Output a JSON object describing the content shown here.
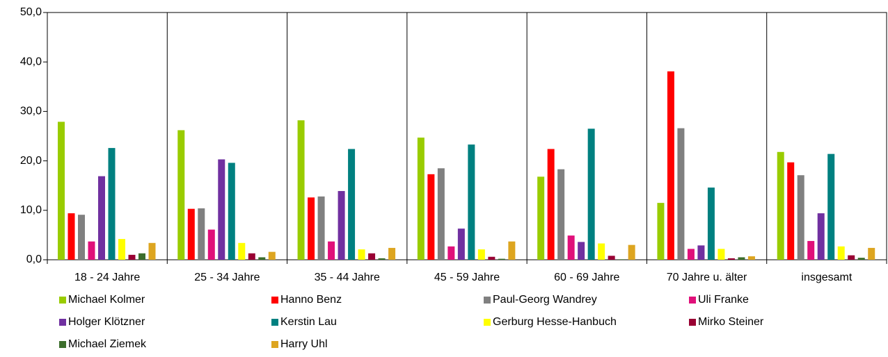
{
  "chart_data": {
    "type": "bar",
    "categories": [
      "18 - 24 Jahre",
      "25 - 34 Jahre",
      "35 - 44 Jahre",
      "45 - 59 Jahre",
      "60 - 69 Jahre",
      "70 Jahre u. älter",
      "insgesamt"
    ],
    "series": [
      {
        "name": "Michael Kolmer",
        "color": "#99cc00",
        "values": [
          27.9,
          26.2,
          28.2,
          24.7,
          16.8,
          11.5,
          21.8
        ]
      },
      {
        "name": "Hanno Benz",
        "color": "#ff0000",
        "values": [
          9.4,
          10.3,
          12.6,
          17.3,
          22.4,
          38.1,
          19.7
        ]
      },
      {
        "name": "Paul-Georg Wandrey",
        "color": "#808080",
        "values": [
          9.1,
          10.4,
          12.8,
          18.5,
          18.3,
          26.6,
          17.1
        ]
      },
      {
        "name": "Uli Franke",
        "color": "#e0107a",
        "values": [
          3.7,
          6.1,
          3.7,
          2.7,
          4.9,
          2.2,
          3.8
        ]
      },
      {
        "name": "Holger Klötzner",
        "color": "#7030a0",
        "values": [
          16.9,
          20.3,
          13.9,
          6.3,
          3.6,
          2.9,
          9.4
        ]
      },
      {
        "name": "Kerstin Lau",
        "color": "#008080",
        "values": [
          22.6,
          19.6,
          22.4,
          23.3,
          26.5,
          14.6,
          21.4
        ]
      },
      {
        "name": "Gerburg Hesse-Hanbuch",
        "color": "#ffff00",
        "values": [
          4.2,
          3.4,
          2.1,
          2.1,
          3.3,
          2.2,
          2.7
        ]
      },
      {
        "name": "Mirko Steiner",
        "color": "#990033",
        "values": [
          1.0,
          1.3,
          1.3,
          0.6,
          0.8,
          0.3,
          0.9
        ]
      },
      {
        "name": "Michael Ziemek",
        "color": "#3c6e2c",
        "values": [
          1.3,
          0.5,
          0.3,
          0.2,
          0.1,
          0.5,
          0.4
        ]
      },
      {
        "name": "Harry Uhl",
        "color": "#dda520",
        "values": [
          3.4,
          1.6,
          2.4,
          3.7,
          3.0,
          0.7,
          2.4
        ]
      }
    ],
    "ylim": [
      0,
      50
    ],
    "yticks": [
      {
        "value": 0,
        "label": "0,0"
      },
      {
        "value": 10,
        "label": "10,0"
      },
      {
        "value": 20,
        "label": "20,0"
      },
      {
        "value": 30,
        "label": "30,0"
      },
      {
        "value": 40,
        "label": "40,0"
      },
      {
        "value": 50,
        "label": "50,0"
      }
    ],
    "legend": "bottom"
  }
}
